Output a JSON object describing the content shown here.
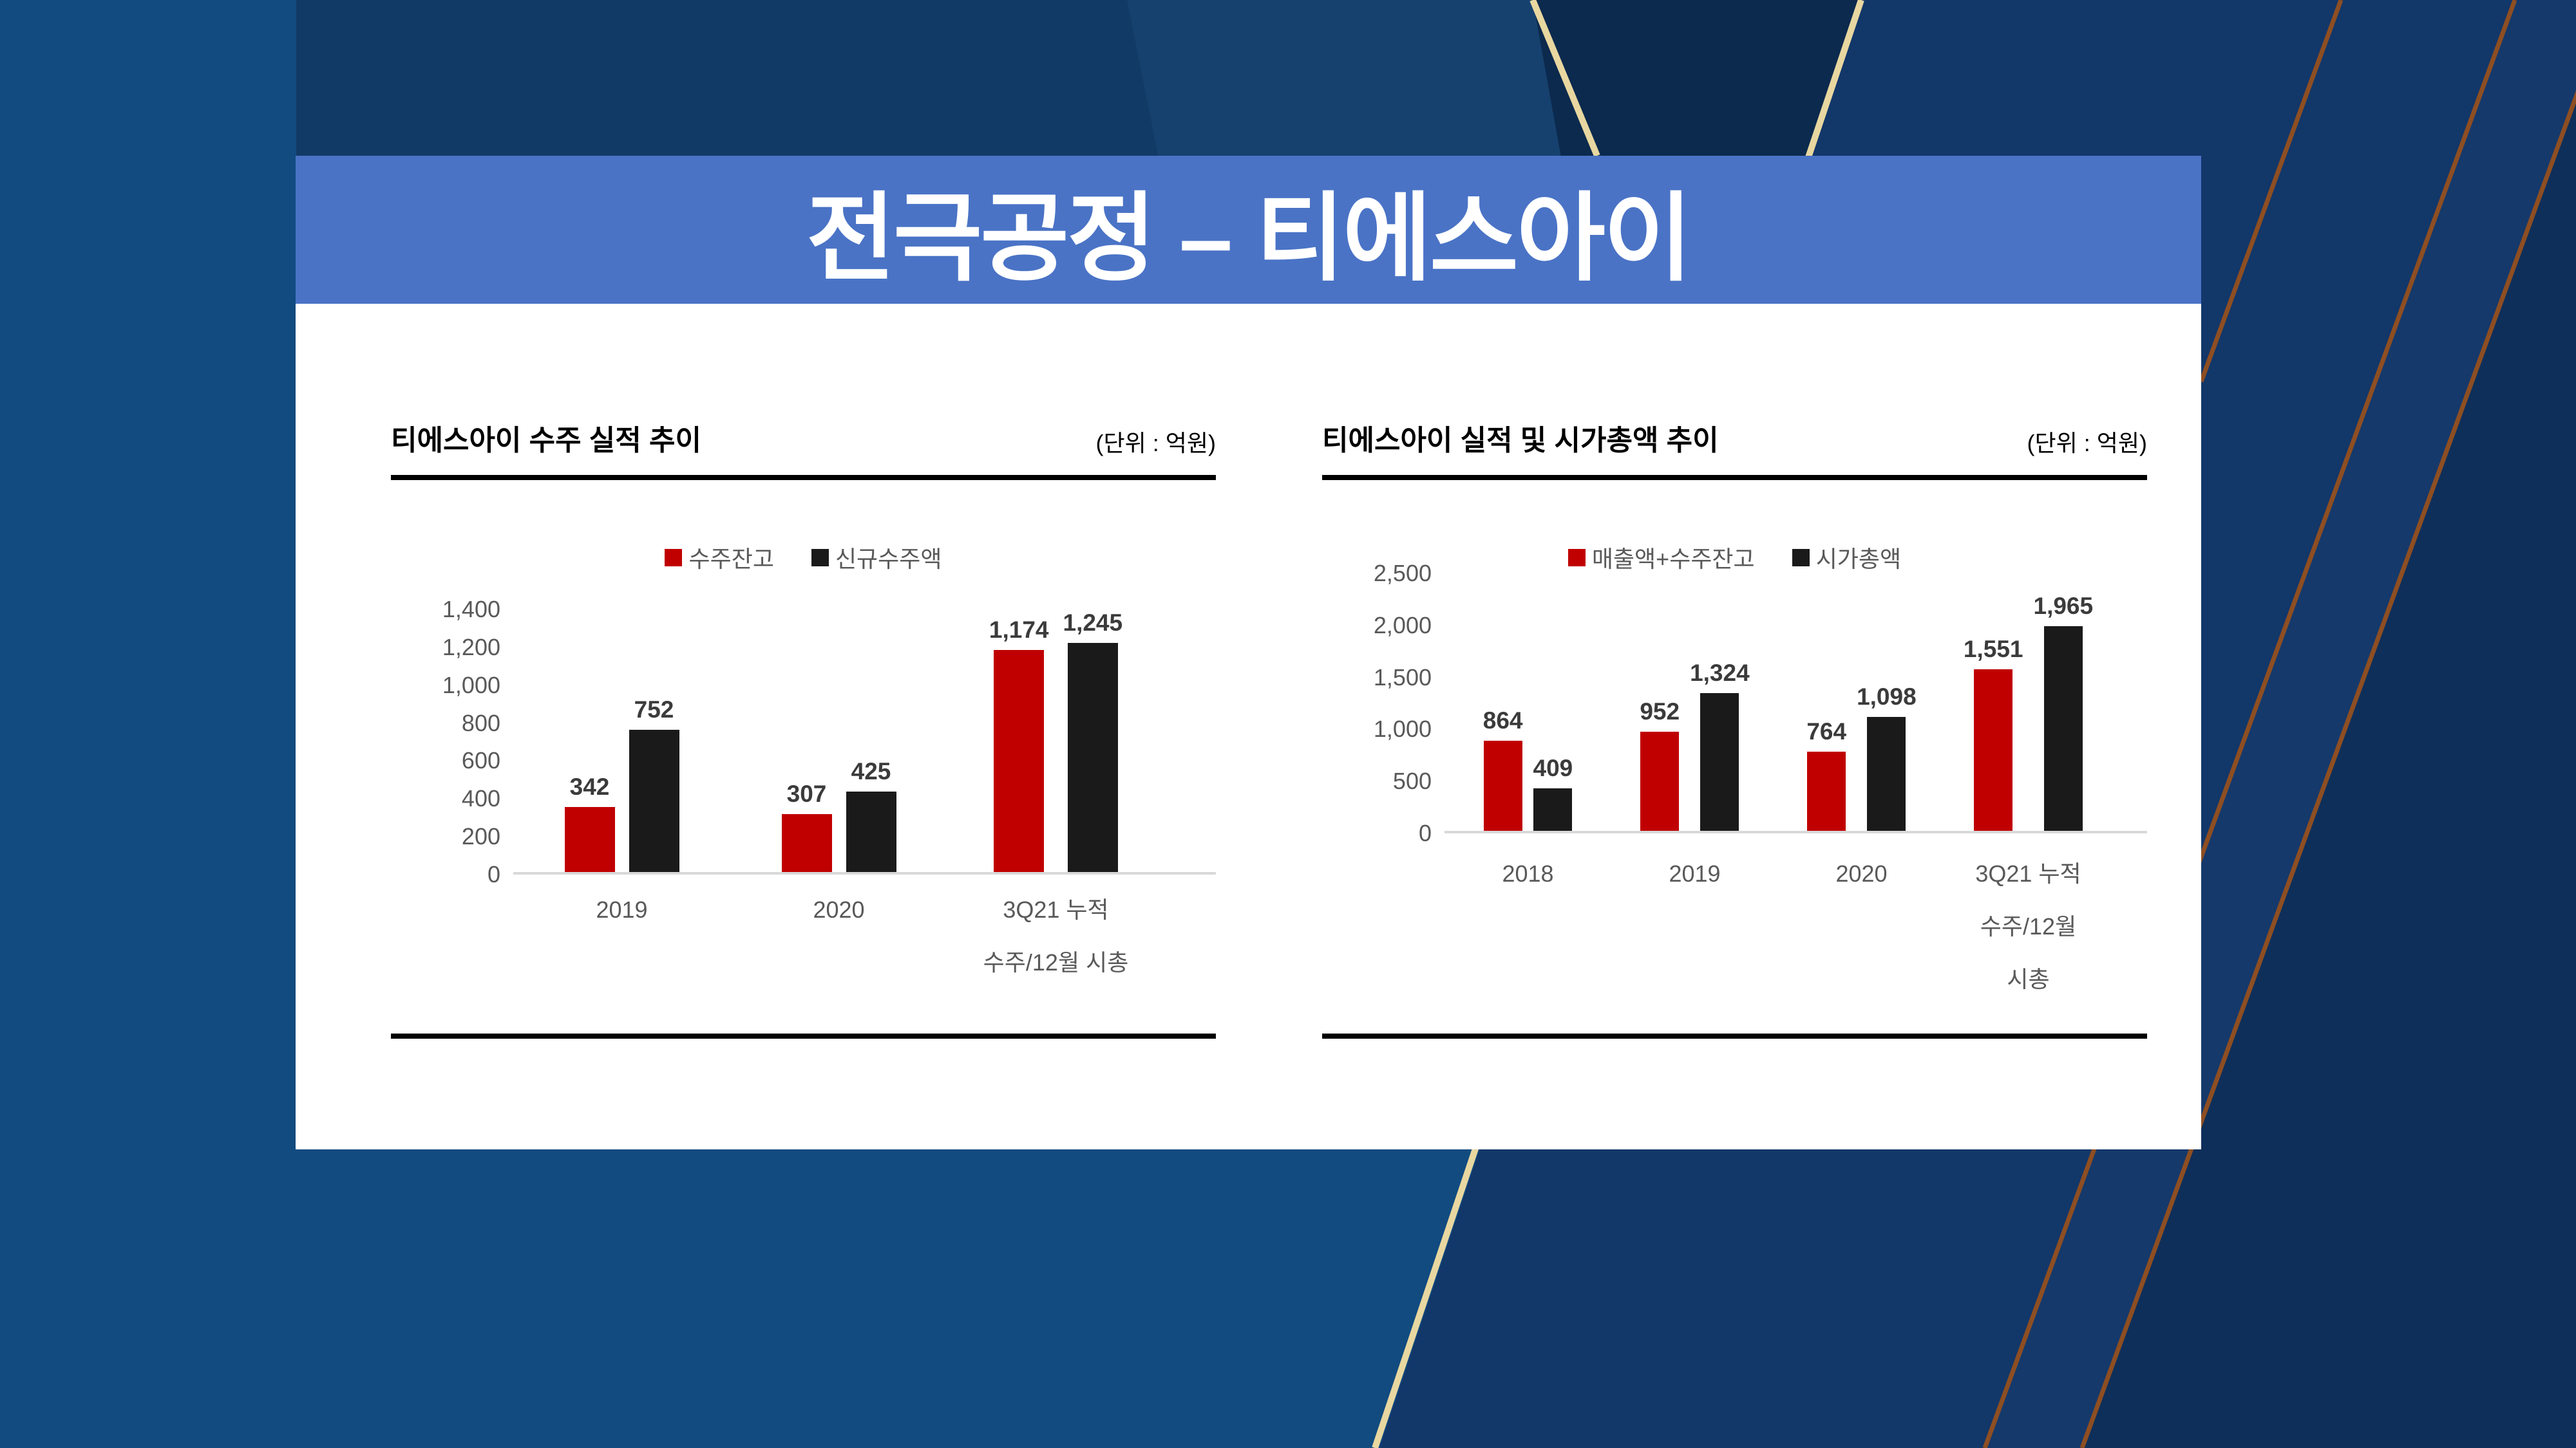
{
  "slide": {
    "title": "전극공정 – 티에스아이"
  },
  "colors": {
    "title_band": "#4A73C6",
    "bar_red": "#C00000",
    "bar_black": "#1A1A1A",
    "text_gray": "#595959",
    "data_label_gray": "#3B3B3B",
    "background_navy": "#123A66",
    "background_blue": "#114B80",
    "dark_band_navy": "#0C2A4E",
    "gold_line": "#E8D7A0",
    "orange_line": "#8E4E22",
    "axis_line": "#D9D9D9",
    "card_white": "#FFFFFF"
  },
  "chart_data": [
    {
      "type": "bar",
      "title": "티에스아이 수주 실적 추이",
      "unit": "(단위 : 억원)",
      "legend_position": "top",
      "grid": false,
      "categories": [
        [
          "2019"
        ],
        [
          "2020"
        ],
        [
          "3Q21 누적",
          "수주/12월 시총"
        ]
      ],
      "series": [
        {
          "name": "수주잔고",
          "color": "#C00000",
          "values": [
            342,
            307,
            1174
          ],
          "labels": [
            "342",
            "307",
            "1,174"
          ]
        },
        {
          "name": "신규수주액",
          "color": "#1A1A1A",
          "values": [
            752,
            425,
            1245
          ],
          "labels": [
            "752",
            "425",
            "1,245"
          ]
        }
      ],
      "xlabel": "",
      "ylabel": "",
      "ylim": [
        0,
        1400
      ],
      "yticks": [
        "1,400",
        "1,200",
        "1,000",
        "800",
        "600",
        "400",
        "200",
        "0"
      ]
    },
    {
      "type": "bar",
      "title": "티에스아이 실적 및 시가총액 추이",
      "unit": "(단위 : 억원)",
      "legend_position": "top",
      "grid": false,
      "categories": [
        [
          "2018"
        ],
        [
          "2019"
        ],
        [
          "2020"
        ],
        [
          "3Q21 누적",
          "수주/12월",
          "시총"
        ]
      ],
      "series": [
        {
          "name": "매출액+수주잔고",
          "color": "#C00000",
          "values": [
            864,
            952,
            764,
            1551
          ],
          "labels": [
            "864",
            "952",
            "764",
            "1,551"
          ]
        },
        {
          "name": "시가총액",
          "color": "#1A1A1A",
          "values": [
            409,
            1324,
            1098,
            1965
          ],
          "labels": [
            "409",
            "1,324",
            "1,098",
            "1,965"
          ]
        }
      ],
      "xlabel": "",
      "ylabel": "",
      "ylim": [
        0,
        2500
      ],
      "yticks": [
        "2,500",
        "2,000",
        "1,500",
        "1,000",
        "500",
        "0"
      ]
    }
  ]
}
